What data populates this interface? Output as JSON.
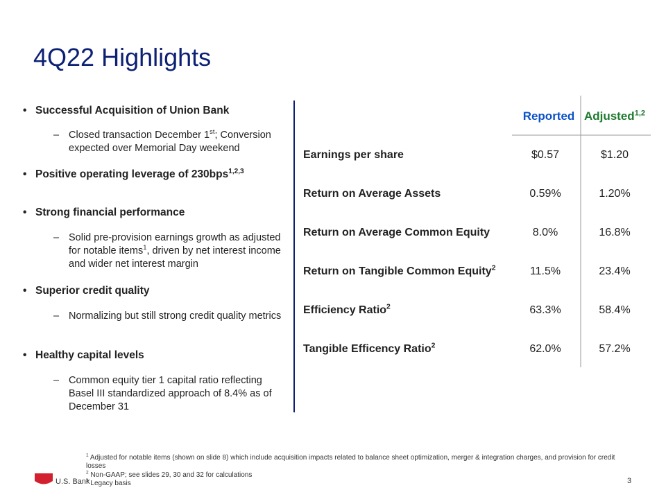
{
  "title": "4Q22 Highlights",
  "bullets": [
    {
      "parts": [
        {
          "text": "Successful Acquisition of Union Bank"
        }
      ],
      "subs": [
        [
          {
            "text": "Closed transaction December 1"
          },
          {
            "sup": "st"
          },
          {
            "text": "; Conversion expected over Memorial Day weekend"
          }
        ]
      ]
    },
    {
      "parts": [
        {
          "text": "Positive operating leverage of 230bps"
        },
        {
          "sup": "1,2,3"
        }
      ],
      "subs": []
    },
    {
      "parts": [
        {
          "text": "Strong financial performance"
        }
      ],
      "subs": [
        [
          {
            "text": "Solid pre-provision earnings growth as adjusted for notable items"
          },
          {
            "sup": "1"
          },
          {
            "text": ", driven by net interest income and wider net interest margin"
          }
        ]
      ]
    },
    {
      "parts": [
        {
          "text": "Superior credit quality"
        }
      ],
      "subs": [
        [
          {
            "text": "Normalizing but still strong credit quality metrics"
          }
        ]
      ]
    },
    {
      "parts": [
        {
          "text": "Healthy capital levels"
        }
      ],
      "subs": [
        [
          {
            "text": "Common equity tier 1 capital ratio reflecting Basel III standardized approach of 8.4% as of December 31"
          }
        ]
      ]
    }
  ],
  "table": {
    "columns": [
      {
        "text": "Reported"
      },
      {
        "text": "Adjusted",
        "sup": "1,2"
      }
    ],
    "rows": [
      {
        "label": "Earnings per share",
        "values": [
          "$0.57",
          "$1.20"
        ]
      },
      {
        "label": "Return on Average Assets",
        "values": [
          "0.59%",
          "1.20%"
        ]
      },
      {
        "label": "Return on Average Common Equity",
        "values": [
          "8.0%",
          "16.8%"
        ]
      },
      {
        "label": "Return on Tangible Common Equity",
        "sup": "2",
        "values": [
          "11.5%",
          "23.4%"
        ]
      },
      {
        "label": "Efficiency Ratio",
        "sup": "2",
        "values": [
          "63.3%",
          "58.4%"
        ]
      },
      {
        "label": "Tangible Efficency Ratio",
        "sup": "2",
        "values": [
          "62.0%",
          "57.2%"
        ]
      }
    ]
  },
  "footnotes": [
    {
      "mark": "1",
      "text": "Adjusted for notable items (shown on slide 8) which include acquisition impacts related to balance sheet optimization, merger & integration charges, and provision for credit losses"
    },
    {
      "mark": "2",
      "text": "Non-GAAP; see slides 29, 30 and 32 for calculations"
    },
    {
      "mark": "3",
      "text": "Legacy basis"
    }
  ],
  "logo": "U.S. Bank",
  "page_number": "3"
}
